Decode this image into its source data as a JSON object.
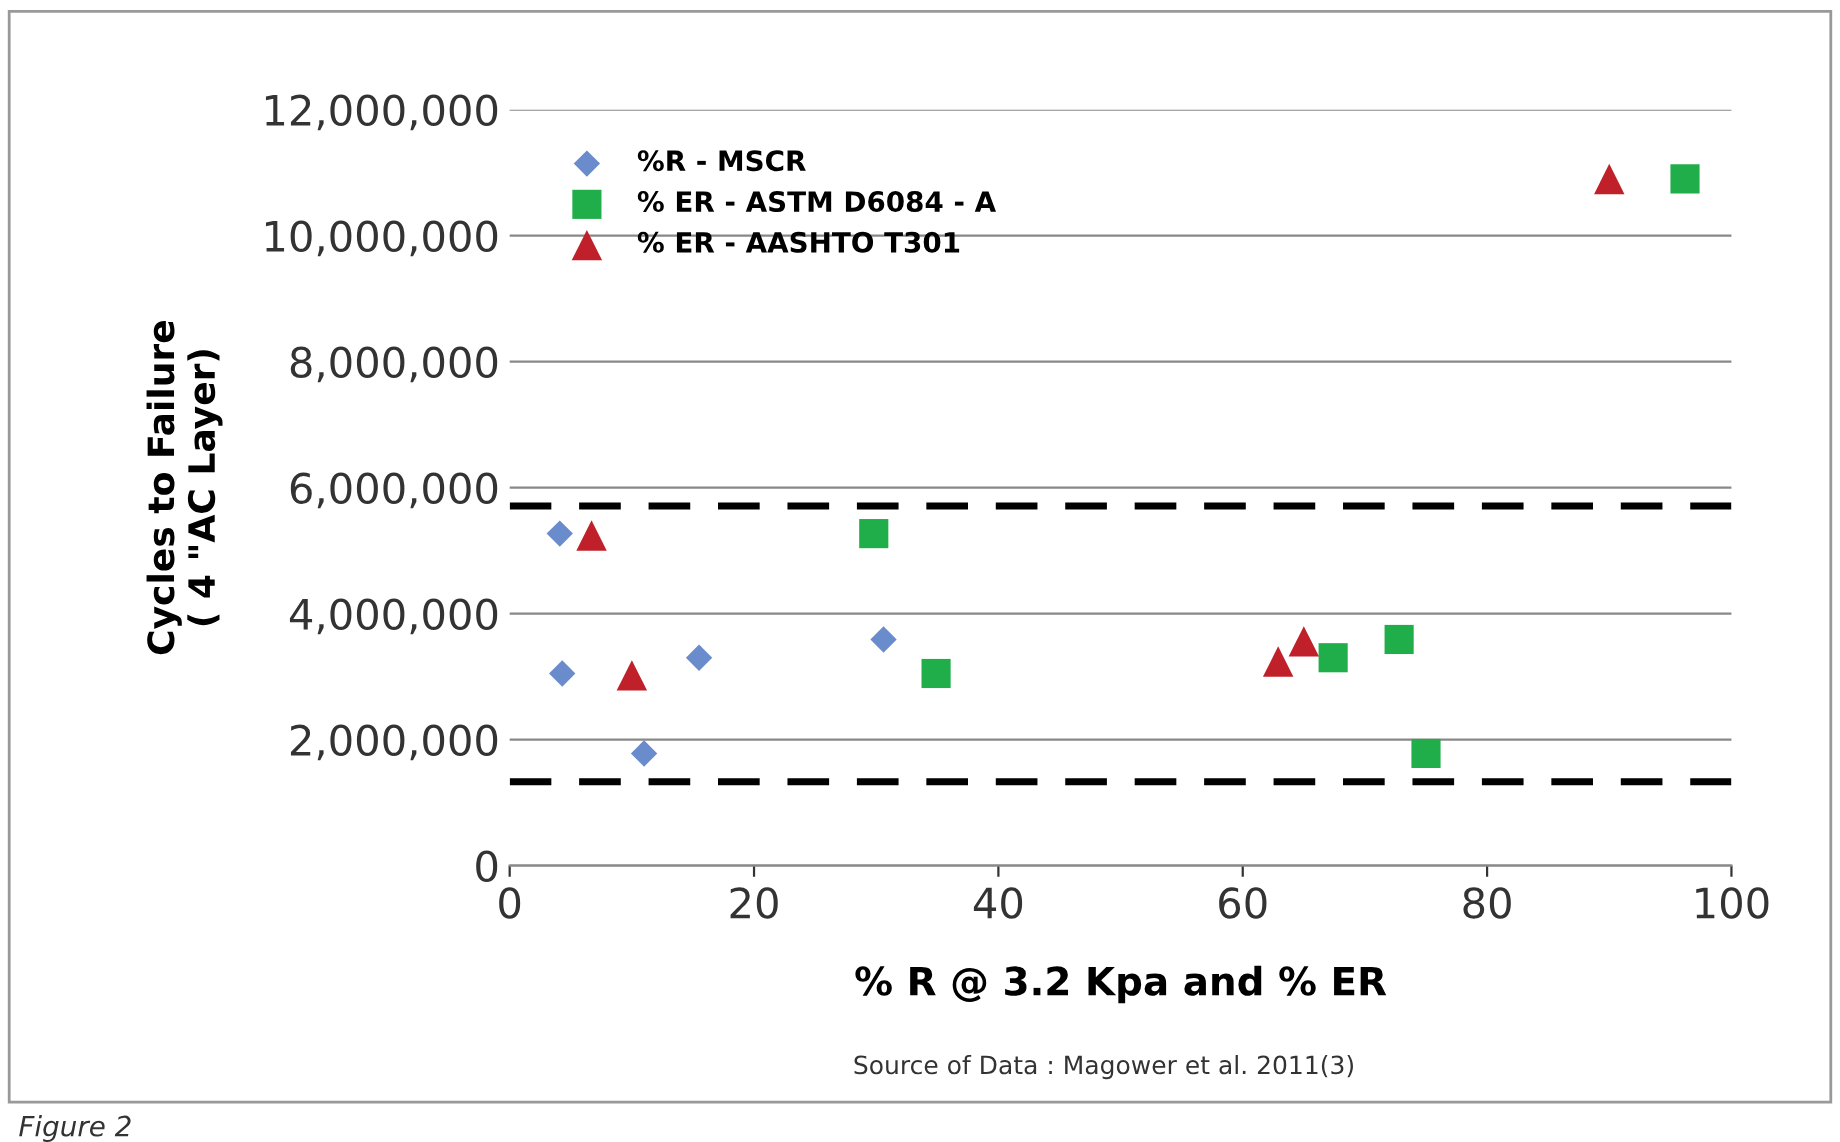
{
  "chart_data": {
    "type": "scatter",
    "xlabel": "% R @ 3.2 Kpa and % ER",
    "ylabel": "Cycles to Failure\n( 4 \"AC Layer)",
    "xlim": [
      0,
      100
    ],
    "xticks": [
      0,
      20,
      40,
      60,
      80,
      100
    ],
    "ylim": [
      0,
      12000000
    ],
    "yticks": [
      0,
      {
        "value": 2000000,
        "label": "2,000,000"
      },
      {
        "value": 4000000,
        "label": "4,000,000"
      },
      {
        "value": 6000000,
        "label": "6,000,000"
      },
      {
        "value": 8000000,
        "label": "8,000,000"
      },
      {
        "value": 10000000,
        "label": "10,000,000"
      },
      {
        "value": 12000000,
        "label": "12,000,000"
      }
    ],
    "grid": "y",
    "legend": "top left",
    "series": [
      {
        "name": "%R - MSCR",
        "color": "#6a8ccc",
        "marker": "diamond",
        "x": [
          4.1,
          4.3,
          11.0,
          15.5,
          30.6
        ],
        "values": [
          5270000,
          3050000,
          1780000,
          3300000,
          3590000
        ]
      },
      {
        "name": "% ER - ASTM D6084 - A",
        "color": "#1fae4a",
        "marker": "square",
        "x": [
          29.8,
          34.9,
          67.4,
          72.8,
          75.0,
          96.2
        ],
        "values": [
          5270000,
          3050000,
          3300000,
          3590000,
          1780000,
          10900000
        ]
      },
      {
        "name": "% ER - AASHTO T301",
        "color": "#c0202a",
        "marker": "triangle",
        "x": [
          6.7,
          10.0,
          62.9,
          65.0,
          90.0
        ],
        "values": [
          5240000,
          3020000,
          3240000,
          3560000,
          10900000
        ]
      }
    ],
    "ref_lines": [
      {
        "axis": "y",
        "value": 5710000,
        "color": "#000000",
        "line_style": "dashed"
      },
      {
        "axis": "y",
        "value": 1330000,
        "color": "#000000",
        "line_style": "dashed"
      }
    ],
    "annotations": [
      "Source of Data : Magower et al. 2011(3)",
      "Figure 2"
    ]
  }
}
